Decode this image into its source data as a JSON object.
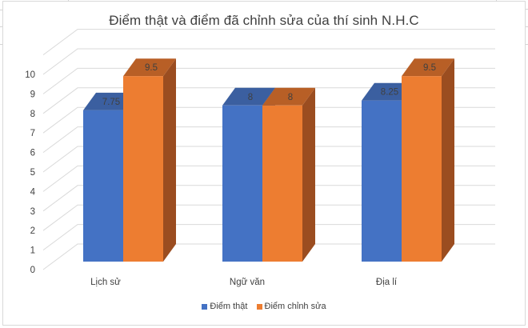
{
  "chart_data": {
    "type": "bar",
    "style": "3d-clustered-column",
    "title": "Điểm thật và điểm đã chỉnh sửa của thí sinh N.H.C",
    "categories": [
      "Lịch sử",
      "Ngữ văn",
      "Địa lí"
    ],
    "series": [
      {
        "name": "Điểm thật",
        "values": [
          7.75,
          8,
          8.25
        ],
        "color": "#4472c4",
        "top_color": "#3b5fa0",
        "side_color": "#2f5597"
      },
      {
        "name": "Điểm chỉnh sửa",
        "values": [
          9.5,
          8,
          9.5
        ],
        "color": "#ed7d31",
        "top_color": "#b85f26",
        "side_color": "#9b4d20"
      }
    ],
    "data_labels": [
      [
        "7.75",
        "8",
        "8.25"
      ],
      [
        "9.5",
        "8",
        "9.5"
      ]
    ],
    "xlabel": "",
    "ylabel": "",
    "ylim": [
      0,
      11
    ],
    "yticks": [
      "0",
      "1",
      "2",
      "3",
      "4",
      "5",
      "6",
      "7",
      "8",
      "9",
      "10"
    ],
    "grid": true,
    "legend_position": "bottom"
  },
  "legend": {
    "items": [
      {
        "label": "Điểm thật",
        "color": "#4472c4"
      },
      {
        "label": "Điểm chỉnh sửa",
        "color": "#ed7d31"
      }
    ]
  }
}
